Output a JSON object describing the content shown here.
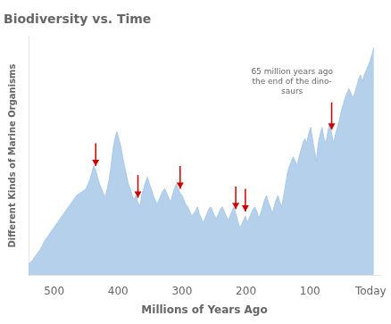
{
  "chart_data": {
    "type": "area",
    "title": "Biodiversity vs. Time",
    "x_label": "Millions of Years Ago",
    "y_label": "Different Kinds of Marine Organisms",
    "x": [
      540,
      535,
      530,
      525,
      520,
      515,
      510,
      505,
      500,
      495,
      490,
      485,
      480,
      475,
      470,
      465,
      460,
      455,
      450,
      447,
      444,
      441,
      438,
      435,
      432,
      429,
      426,
      423,
      420,
      417,
      414,
      411,
      408,
      405,
      402,
      399,
      396,
      393,
      390,
      387,
      384,
      381,
      378,
      375,
      372,
      369,
      366,
      363,
      360,
      357,
      354,
      351,
      348,
      345,
      342,
      339,
      336,
      333,
      330,
      327,
      324,
      321,
      318,
      315,
      312,
      309,
      306,
      303,
      300,
      297,
      294,
      291,
      288,
      285,
      282,
      279,
      276,
      273,
      270,
      267,
      264,
      261,
      258,
      255,
      252,
      249,
      246,
      243,
      240,
      237,
      234,
      231,
      228,
      225,
      222,
      219,
      216,
      213,
      210,
      207,
      204,
      201,
      198,
      195,
      192,
      189,
      186,
      183,
      180,
      177,
      174,
      171,
      168,
      165,
      162,
      159,
      156,
      153,
      150,
      147,
      144,
      141,
      138,
      135,
      132,
      129,
      126,
      123,
      120,
      117,
      114,
      111,
      108,
      105,
      102,
      99,
      96,
      93,
      90,
      87,
      84,
      81,
      78,
      75,
      72,
      69,
      66,
      63,
      60,
      57,
      54,
      51,
      48,
      45,
      42,
      39,
      36,
      33,
      30,
      27,
      24,
      21,
      18,
      15,
      12,
      9,
      6,
      3,
      0
    ],
    "values": [
      5,
      6,
      8,
      10,
      12,
      15,
      17,
      19,
      21,
      23,
      25,
      27,
      29,
      31,
      33,
      35,
      36,
      37,
      38,
      40,
      42,
      45,
      48,
      46,
      43,
      40,
      38,
      36,
      34,
      38,
      42,
      48,
      55,
      60,
      63,
      60,
      57,
      52,
      48,
      44,
      40,
      38,
      35,
      33,
      35,
      32,
      30,
      35,
      38,
      41,
      43,
      40,
      38,
      35,
      33,
      31,
      33,
      35,
      37,
      38,
      36,
      34,
      32,
      35,
      38,
      40,
      38,
      36,
      35,
      33,
      31,
      30,
      28,
      26,
      27,
      28,
      30,
      27,
      25,
      23,
      25,
      27,
      29,
      30,
      28,
      26,
      25,
      27,
      29,
      30,
      28,
      26,
      24,
      26,
      28,
      30,
      27,
      24,
      21,
      22,
      24,
      26,
      23,
      25,
      27,
      29,
      30,
      28,
      25,
      27,
      30,
      33,
      35,
      32,
      30,
      27,
      30,
      33,
      35,
      32,
      30,
      35,
      40,
      45,
      48,
      50,
      52,
      50,
      48,
      52,
      55,
      58,
      60,
      58,
      62,
      65,
      60,
      55,
      50,
      58,
      62,
      65,
      60,
      58,
      63,
      67,
      62,
      58,
      62,
      65,
      68,
      72,
      75,
      78,
      80,
      82,
      80,
      78,
      80,
      83,
      86,
      88,
      85,
      88,
      90,
      92,
      94,
      97,
      100
    ],
    "color": "#A8C8E8",
    "xlim": [
      540,
      -10
    ],
    "ylim": [
      0,
      105
    ],
    "xticks": [
      500,
      400,
      300,
      200,
      100,
      {
        "value": 5,
        "label": "Today"
      }
    ],
    "grid": false,
    "tick_labels": "x",
    "arrows": [
      {
        "x": 369,
        "y_from": 44,
        "y_to": 34,
        "color": "#CC0000"
      },
      {
        "x": 435,
        "y_from": 58,
        "y_to": 48,
        "color": "#CC0000"
      },
      {
        "x": 303,
        "y_from": 48,
        "y_to": 38,
        "color": "#CC0000"
      },
      {
        "x": 201,
        "y_from": 38,
        "y_to": 28,
        "color": "#CC0000"
      },
      {
        "x": 216,
        "y_from": 39,
        "y_to": 29,
        "color": "#CC0000"
      },
      {
        "x": 66,
        "y_from": 76,
        "y_to": 64,
        "color": "#CC0000"
      }
    ],
    "annotations": [
      {
        "text": "65 million years ago\nthe end of the dino-\nsaurs",
        "x": 128,
        "y": 91
      }
    ]
  }
}
